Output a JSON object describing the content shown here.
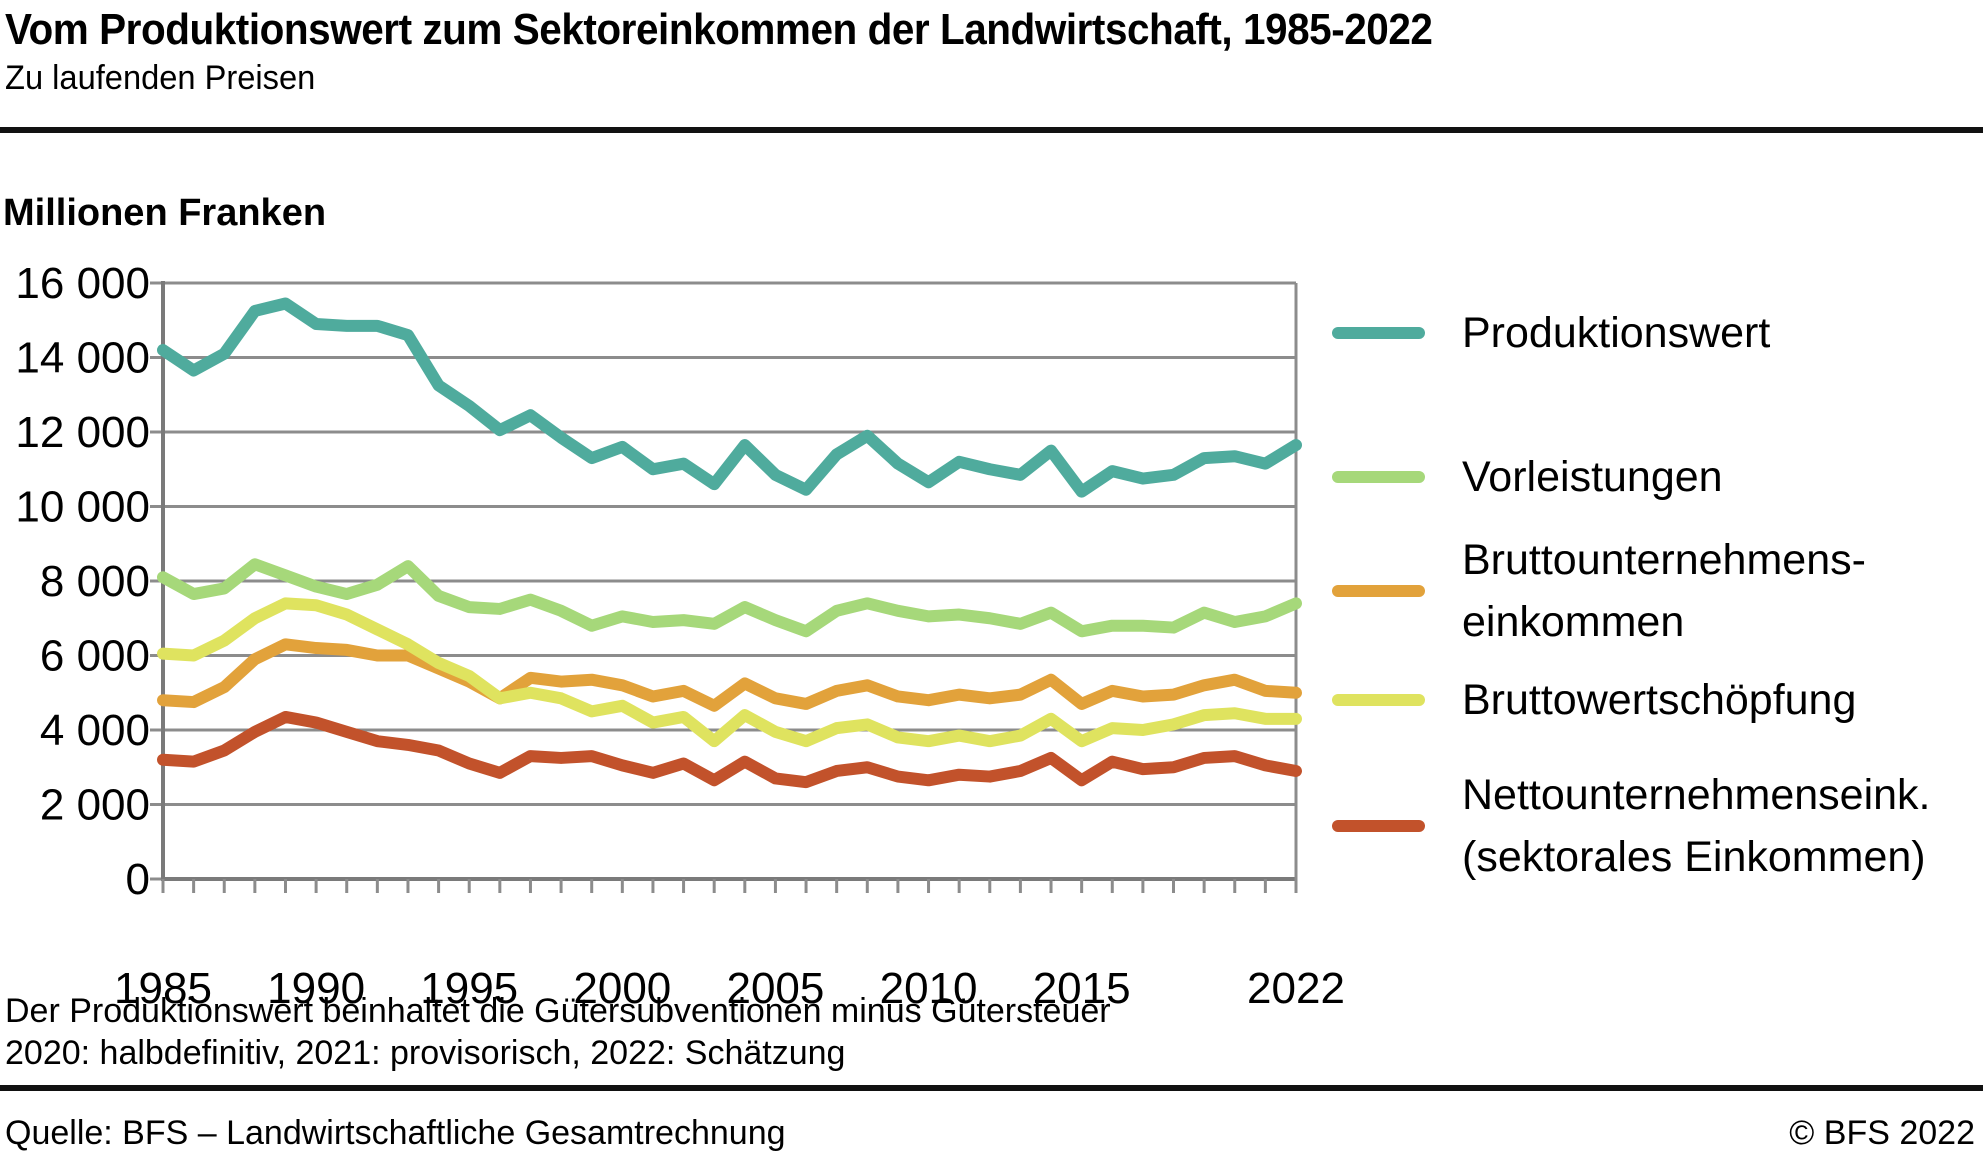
{
  "header": {
    "title": "Vom Produktionswert zum Sektoreinkommen der Landwirtschaft, 1985-2022",
    "subtitle": "Zu laufenden Preisen"
  },
  "chart": {
    "unit_label": "Millionen Franken"
  },
  "chart_data": {
    "type": "line",
    "title": "Vom Produktionswert zum Sektoreinkommen der Landwirtschaft, 1985-2022",
    "ylabel": "Millionen Franken",
    "xlabel": "",
    "ylim": [
      0,
      16000
    ],
    "ytick_step": 2000,
    "grid": "horizontal",
    "legend_position": "right",
    "x": [
      1985,
      1986,
      1987,
      1988,
      1989,
      1990,
      1991,
      1992,
      1993,
      1994,
      1995,
      1996,
      1997,
      1998,
      1999,
      2000,
      2001,
      2002,
      2003,
      2004,
      2005,
      2006,
      2007,
      2008,
      2009,
      2010,
      2011,
      2012,
      2013,
      2014,
      2015,
      2016,
      2017,
      2018,
      2019,
      2020,
      2021,
      2022
    ],
    "x_axis_ticks": [
      {
        "year": 1985,
        "label": "1985"
      },
      {
        "year": 1990,
        "label": "1990"
      },
      {
        "year": 1995,
        "label": "1995"
      },
      {
        "year": 2000,
        "label": "2000"
      },
      {
        "year": 2005,
        "label": "2005"
      },
      {
        "year": 2010,
        "label": "2010"
      },
      {
        "year": 2015,
        "label": "2015"
      },
      {
        "year": 2022,
        "label": "2022"
      }
    ],
    "y_tick_labels": [
      "0",
      "2 000",
      "4 000",
      "6 000",
      "8 000",
      "10 000",
      "12 000",
      "14 000",
      "16 000"
    ],
    "series": [
      {
        "name": "Produktionswert",
        "legend_lines": [
          "Produktionswert"
        ],
        "color": "#4FAB9D",
        "values": [
          14200,
          13650,
          14100,
          15250,
          15450,
          14900,
          14850,
          14850,
          14600,
          13250,
          12700,
          12050,
          12450,
          11850,
          11300,
          11600,
          11000,
          11150,
          10600,
          11650,
          10850,
          10450,
          11400,
          11900,
          11150,
          10650,
          11200,
          11000,
          10850,
          11500,
          10400,
          10950,
          10750,
          10850,
          11300,
          11350,
          11150,
          11650
        ]
      },
      {
        "name": "Vorleistungen",
        "legend_lines": [
          "Vorleistungen"
        ],
        "color": "#A6D87A",
        "values": [
          8100,
          7650,
          7800,
          8450,
          8150,
          7850,
          7650,
          7900,
          8400,
          7600,
          7300,
          7250,
          7500,
          7200,
          6800,
          7050,
          6900,
          6950,
          6850,
          7300,
          6950,
          6650,
          7200,
          7400,
          7200,
          7050,
          7100,
          7000,
          6850,
          7150,
          6650,
          6800,
          6800,
          6750,
          7150,
          6900,
          7050,
          7400
        ]
      },
      {
        "name": "Bruttounternehmenseinkommen",
        "legend_lines": [
          "Bruttounternehmens-",
          "einkommen"
        ],
        "color": "#E2A23B",
        "values": [
          4800,
          4750,
          5150,
          5900,
          6300,
          6200,
          6150,
          6000,
          6000,
          5650,
          5300,
          4850,
          5400,
          5300,
          5350,
          5200,
          4900,
          5050,
          4650,
          5250,
          4850,
          4700,
          5050,
          5200,
          4900,
          4800,
          4950,
          4850,
          4950,
          5350,
          4700,
          5050,
          4900,
          4950,
          5200,
          5350,
          5050,
          5000
        ]
      },
      {
        "name": "Bruttowertschöpfung",
        "legend_lines": [
          "Bruttowertschöpfung"
        ],
        "color": "#DFE35F",
        "values": [
          6050,
          6000,
          6400,
          7000,
          7400,
          7350,
          7100,
          6700,
          6300,
          5800,
          5450,
          4850,
          5000,
          4850,
          4500,
          4650,
          4200,
          4350,
          3700,
          4400,
          3950,
          3700,
          4050,
          4150,
          3800,
          3700,
          3850,
          3700,
          3850,
          4300,
          3700,
          4050,
          4000,
          4150,
          4400,
          4450,
          4300,
          4300
        ]
      },
      {
        "name": "Nettounternehmenseink. (sektorales Einkommen)",
        "legend_lines": [
          "Nettounternehmenseink.",
          "(sektorales Einkommen)"
        ],
        "color": "#C2522B",
        "values": [
          3200,
          3150,
          3450,
          3950,
          4350,
          4200,
          3950,
          3700,
          3600,
          3450,
          3100,
          2850,
          3300,
          3250,
          3300,
          3050,
          2850,
          3100,
          2650,
          3150,
          2700,
          2600,
          2900,
          3000,
          2750,
          2650,
          2800,
          2750,
          2900,
          3250,
          2650,
          3150,
          2950,
          3000,
          3250,
          3300,
          3050,
          2900
        ]
      }
    ],
    "colors": {
      "grid": "#8C8C8C",
      "axis": "#7A7A7A",
      "rule": "#111111"
    }
  },
  "footnotes": {
    "line1": "Der Produktionswert beinhaltet die Gütersubventionen minus Gütersteuer",
    "line2": "2020: halbdefinitiv, 2021: provisorisch, 2022: Schätzung"
  },
  "footer": {
    "source": "Quelle: BFS – Landwirtschaftliche Gesamtrechnung",
    "copyright": "© BFS 2022"
  }
}
